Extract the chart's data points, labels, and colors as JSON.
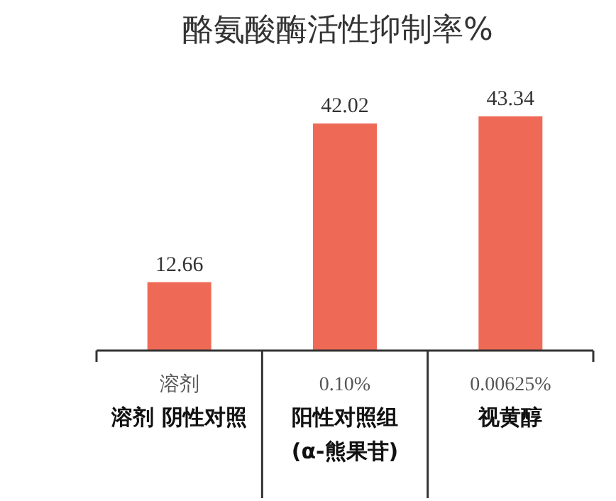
{
  "chart_data": {
    "type": "bar",
    "title": "酪氨酸酶活性抑制率%",
    "relative": false,
    "categories": [
      "溶剂**溶剂 阴性对照**",
      "0.10%**阳性对照组**\n**(α-熊果苷)**",
      "0.00625%**视黄醇**"
    ],
    "values": [
      12.66,
      42.02,
      43.34
    ],
    "color": "#ef6a56",
    "data_labels": true
  }
}
